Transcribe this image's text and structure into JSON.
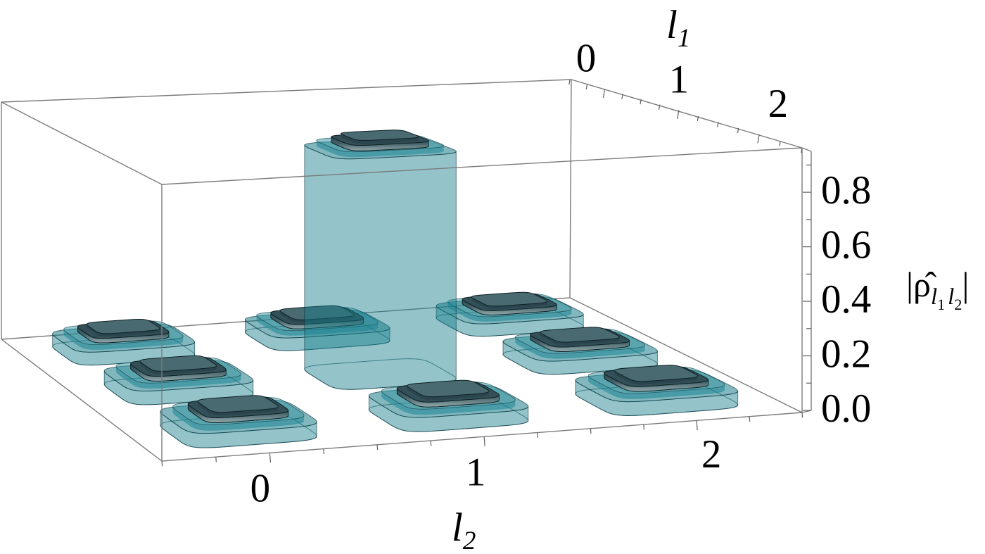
{
  "figure": {
    "background": "#ffffff",
    "description": "3D bar chart of density matrix magnitudes over mode indices l1 and l2"
  },
  "chart_data": {
    "type": "bar",
    "subtype": "bar3d-matrix",
    "title": "",
    "l1_axis": {
      "label_main": "l",
      "label_sub": "1",
      "tick_labels": [
        "0",
        "1",
        "2"
      ]
    },
    "l2_axis": {
      "label_main": "l",
      "label_sub": "2",
      "tick_labels": [
        "0",
        "1",
        "2"
      ]
    },
    "z_axis": {
      "label": "|rho_hat_l1l2|",
      "tick_labels": [
        "0.0",
        "0.2",
        "0.4",
        "0.6",
        "0.8"
      ],
      "tick_values": [
        0.0,
        0.2,
        0.4,
        0.6,
        0.8
      ],
      "minor_tick_step": 0.1,
      "range": [
        0,
        0.95
      ],
      "grid": false
    },
    "legend": null,
    "series": [
      {
        "name": "outer-translucent-bar",
        "color": "#7fc2cb",
        "rows_l1": [
          "0",
          "1",
          "2"
        ],
        "cols_l2": [
          "0",
          "1",
          "2"
        ],
        "values": [
          [
            0.07,
            0.07,
            0.07
          ],
          [
            0.07,
            0.88,
            0.07
          ],
          [
            0.07,
            0.07,
            0.07
          ]
        ]
      },
      {
        "name": "inner-dark-cap-bar",
        "color": "#4a6a71",
        "rows_l1": [
          "0",
          "1",
          "2"
        ],
        "cols_l2": [
          "0",
          "1",
          "2"
        ],
        "values": [
          [
            0.095,
            0.095,
            0.095
          ],
          [
            0.095,
            0.91,
            0.095
          ],
          [
            0.095,
            0.095,
            0.095
          ]
        ]
      }
    ]
  },
  "labels": {
    "l1_title_main": "l",
    "l1_title_sub": "1",
    "l2_title_main": "l",
    "l2_title_sub": "2",
    "z_bar_open": "|",
    "z_rho": "ρ̂",
    "z_sub1_letter": "l",
    "z_sub1_digit": "1",
    "z_sub2_letter": "l",
    "z_sub2_digit": "2",
    "z_bar_close": "|"
  },
  "colors": {
    "frame": "#7b7b7b",
    "tick": "#5f5f5f",
    "teal_wall": "rgba(21,126,140,0.46)",
    "teal_top": "rgba(15,117,131,0.52)",
    "teal_bevel_wall": "rgba(27,134,148,0.55)",
    "teal_top_inner": "rgba(52,148,160,0.50)",
    "teal_stroke": "rgba(8,54,64,0.65)",
    "cap_top": "#4a6a71",
    "cap_shoulder": "#335058",
    "cap_bevel": "#2a454e",
    "cap_stroke": "#0d2126",
    "cap_grad_stops": [
      "#2e4a52",
      "#415e66",
      "#6d878b",
      "#93a9ab"
    ]
  }
}
